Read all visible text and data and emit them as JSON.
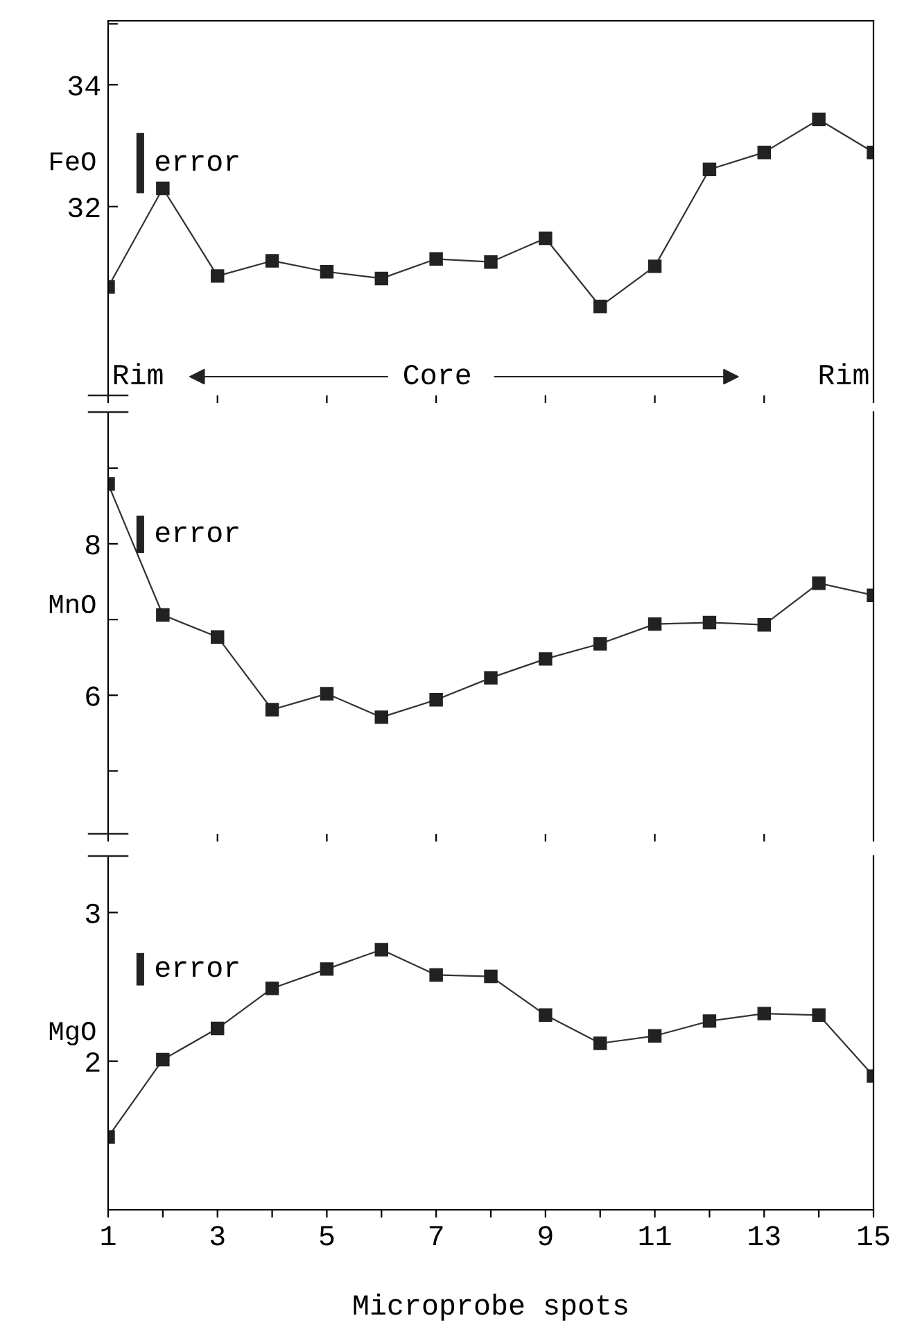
{
  "chart_data": [
    {
      "type": "line",
      "ylabel": "FeO",
      "x": [
        1,
        2,
        3,
        4,
        5,
        6,
        7,
        8,
        9,
        10,
        11,
        12,
        13,
        14,
        15
      ],
      "series": [
        {
          "color": "#333333",
          "values": [
            30.68,
            32.3,
            30.86,
            31.11,
            30.93,
            30.82,
            31.14,
            31.09,
            31.48,
            30.36,
            31.02,
            32.61,
            32.89,
            33.43,
            32.89
          ]
        }
      ],
      "xlim": [
        1,
        15
      ],
      "xticks": [
        1,
        3,
        5,
        7,
        9,
        11,
        13,
        15
      ],
      "ylim": [
        28.9,
        35.05
      ],
      "yticks": [
        32,
        34,
        {
          "value": 35,
          "label": null
        }
      ],
      "tick_labels": "y",
      "marker": "square",
      "annotations": [
        "error",
        "Rim",
        "Core",
        "Rim"
      ]
    },
    {
      "type": "line",
      "ylabel": "MnO",
      "x": [
        1,
        2,
        3,
        4,
        5,
        6,
        7,
        8,
        9,
        10,
        11,
        12,
        13,
        14,
        15
      ],
      "series": [
        {
          "color": "#333333",
          "values": [
            8.79,
            7.06,
            6.77,
            5.81,
            6.02,
            5.71,
            5.94,
            6.23,
            6.48,
            6.68,
            6.94,
            6.96,
            6.93,
            7.48,
            7.32
          ]
        }
      ],
      "xlim": [
        1,
        15
      ],
      "xticks": [
        1,
        3,
        5,
        7,
        9,
        11,
        13,
        15
      ],
      "ylim": [
        4.17,
        9.74
      ],
      "yticks": [
        {
          "value": 5,
          "label": null
        },
        6,
        {
          "value": 7,
          "label": null
        },
        8,
        {
          "value": 9,
          "label": null
        }
      ],
      "tick_labels": "y",
      "marker": "square",
      "annotations": [
        "error"
      ]
    },
    {
      "type": "line",
      "ylabel": "MgO",
      "xlabel": "Microprobe spots",
      "x": [
        1,
        2,
        3,
        4,
        5,
        6,
        7,
        8,
        9,
        10,
        11,
        12,
        13,
        14,
        15
      ],
      "series": [
        {
          "color": "#333333",
          "values": [
            1.49,
            2.01,
            2.22,
            2.49,
            2.62,
            2.75,
            2.58,
            2.57,
            2.31,
            2.12,
            2.17,
            2.27,
            2.32,
            2.31,
            1.9
          ]
        }
      ],
      "xlim": [
        1,
        15
      ],
      "xticks": [
        1,
        {
          "value": 2,
          "label": null
        },
        3,
        {
          "value": 4,
          "label": null
        },
        5,
        {
          "value": 6,
          "label": null
        },
        7,
        {
          "value": 8,
          "label": null
        },
        9,
        {
          "value": 10,
          "label": null
        },
        11,
        {
          "value": 12,
          "label": null
        },
        13,
        {
          "value": 14,
          "label": null
        },
        15
      ],
      "ylim": [
        1.0,
        3.38
      ],
      "yticks": [
        2,
        3
      ],
      "marker": "square",
      "annotations": [
        "error"
      ]
    }
  ]
}
